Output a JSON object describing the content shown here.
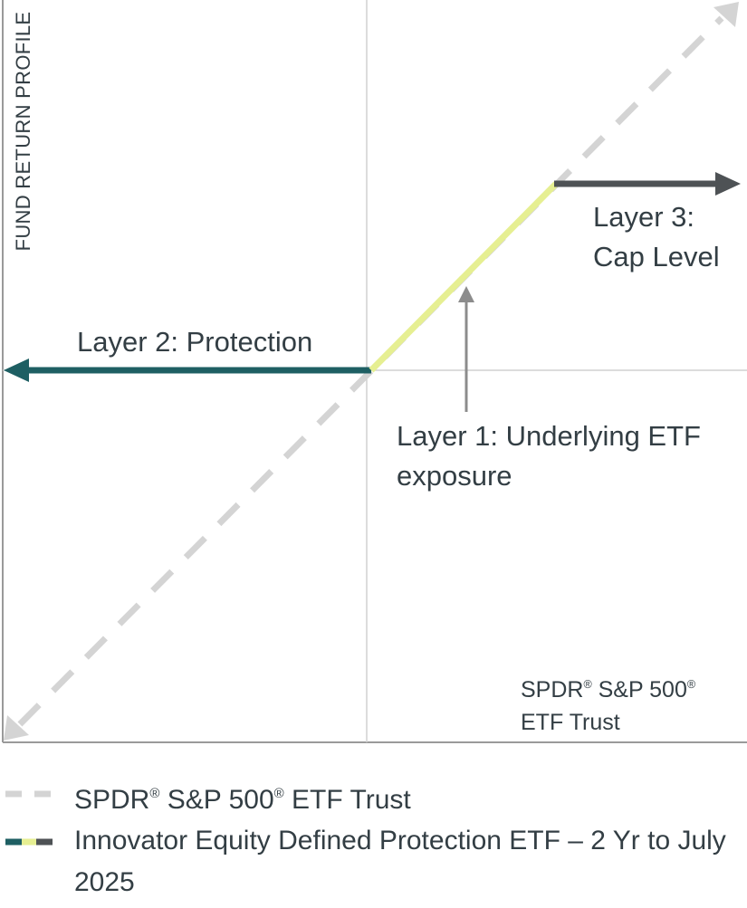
{
  "y_axis_title": "FUND RETURN PROFILE",
  "x_axis_label": {
    "line1_a": "SPDR",
    "line1_b": " S&P 500",
    "reg": "®",
    "line2": "ETF Trust"
  },
  "annotations": {
    "layer2": "Layer 2: Protection",
    "layer3_line1": "Layer 3:",
    "layer3_line2": "Cap Level",
    "layer1_line1": "Layer 1: Underlying ETF",
    "layer1_line2": "exposure"
  },
  "legend": {
    "item1_a": "SPDR",
    "item1_b": " S&P 500",
    "item1_c": " ETF Trust",
    "reg": "®",
    "item2_line1": "Innovator Equity Defined Protection ETF – 2 Yr to July",
    "item2_line2": "2025"
  },
  "colors": {
    "benchmark_dashed": "#d4d4d4",
    "protection": "#1e5f63",
    "underlying": "#e6ef92",
    "cap": "#4e5255",
    "exposure_arrow": "#8c8c8c",
    "axis": "#9a9a9a",
    "grid": "#d0d0d0"
  }
}
